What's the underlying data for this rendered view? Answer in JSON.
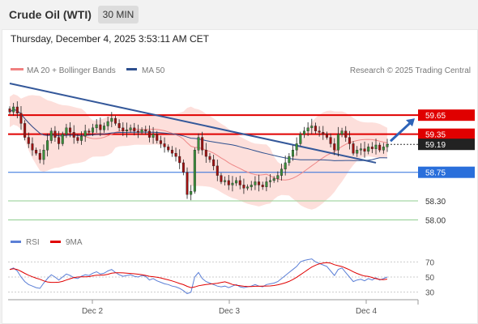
{
  "header": {
    "instrument": "Crude Oil (WTI)",
    "timeframe": "30 MIN",
    "datetime": "Thursday, December 4, 2025 3:53:11 AM CET"
  },
  "legend": {
    "ma20_label": "MA 20 + Bollinger Bands",
    "ma20_color": "#f08080",
    "ma50_label": "MA 50",
    "ma50_color": "#2d4f8e",
    "credit": "Research © 2025 Trading Central"
  },
  "rsi_legend": {
    "rsi_label": "RSI",
    "rsi_color": "#5b7fd6",
    "ma_label": "9MA",
    "ma_color": "#e00000"
  },
  "chart_data": {
    "type": "candlestick",
    "price_range": [
      57.84,
      60.15
    ],
    "x_ticks": [
      "Dec 2",
      "Dec 3",
      "Dec 4"
    ],
    "last_price": 59.19,
    "levels": [
      {
        "value": 59.65,
        "label": "59.65",
        "kind": "resistance"
      },
      {
        "value": 59.35,
        "label": "59.35",
        "kind": "resistance"
      },
      {
        "value": 59.19,
        "label": "59.19",
        "kind": "last"
      },
      {
        "value": 58.75,
        "label": "58.75",
        "kind": "support"
      },
      {
        "value": 58.3,
        "label": "58.30",
        "kind": "target"
      },
      {
        "value": 58.0,
        "label": "58.00",
        "kind": "target"
      }
    ],
    "trendline": [
      {
        "t": 0,
        "p": 60.15
      },
      {
        "t": 97,
        "p": 58.9
      }
    ],
    "closes": [
      59.7,
      59.78,
      59.68,
      59.52,
      59.3,
      59.2,
      59.1,
      59.05,
      58.95,
      59.1,
      59.25,
      59.4,
      59.3,
      59.2,
      59.35,
      59.45,
      59.38,
      59.3,
      59.25,
      59.32,
      59.4,
      59.38,
      59.45,
      59.5,
      59.42,
      59.48,
      59.55,
      59.6,
      59.52,
      59.45,
      59.4,
      59.42,
      59.45,
      59.4,
      59.38,
      59.42,
      59.4,
      59.3,
      59.35,
      59.25,
      59.2,
      59.15,
      59.1,
      59.05,
      59.0,
      58.9,
      58.75,
      58.4,
      58.45,
      59.1,
      59.3,
      59.1,
      59.0,
      58.95,
      58.85,
      58.7,
      58.6,
      58.62,
      58.55,
      58.58,
      58.62,
      58.55,
      58.5,
      58.52,
      58.55,
      58.6,
      58.55,
      58.52,
      58.6,
      58.62,
      58.65,
      58.7,
      58.8,
      58.9,
      59.0,
      59.1,
      59.2,
      59.35,
      59.4,
      59.45,
      59.48,
      59.4,
      59.38,
      59.35,
      59.3,
      59.2,
      59.1,
      59.35,
      59.4,
      59.3,
      59.2,
      59.05,
      59.1,
      59.12,
      59.08,
      59.15,
      59.12,
      59.18,
      59.1,
      59.15,
      59.19
    ],
    "rsi": {
      "levels": [
        30,
        50,
        70
      ],
      "values": [
        60,
        62,
        58,
        50,
        44,
        40,
        38,
        36,
        35,
        42,
        48,
        53,
        50,
        46,
        50,
        54,
        52,
        49,
        48,
        51,
        53,
        52,
        55,
        57,
        54,
        55,
        58,
        60,
        56,
        53,
        51,
        52,
        53,
        51,
        50,
        52,
        51,
        46,
        48,
        45,
        43,
        41,
        40,
        38,
        37,
        35,
        32,
        28,
        30,
        50,
        56,
        48,
        44,
        42,
        40,
        38,
        37,
        38,
        36,
        38,
        40,
        37,
        36,
        37,
        38,
        40,
        38,
        37,
        40,
        41,
        42,
        44,
        48,
        52,
        56,
        60,
        64,
        70,
        72,
        73,
        74,
        70,
        68,
        66,
        64,
        58,
        52,
        60,
        62,
        56,
        50,
        44,
        46,
        47,
        45,
        48,
        46,
        49,
        46,
        48,
        50
      ]
    }
  }
}
